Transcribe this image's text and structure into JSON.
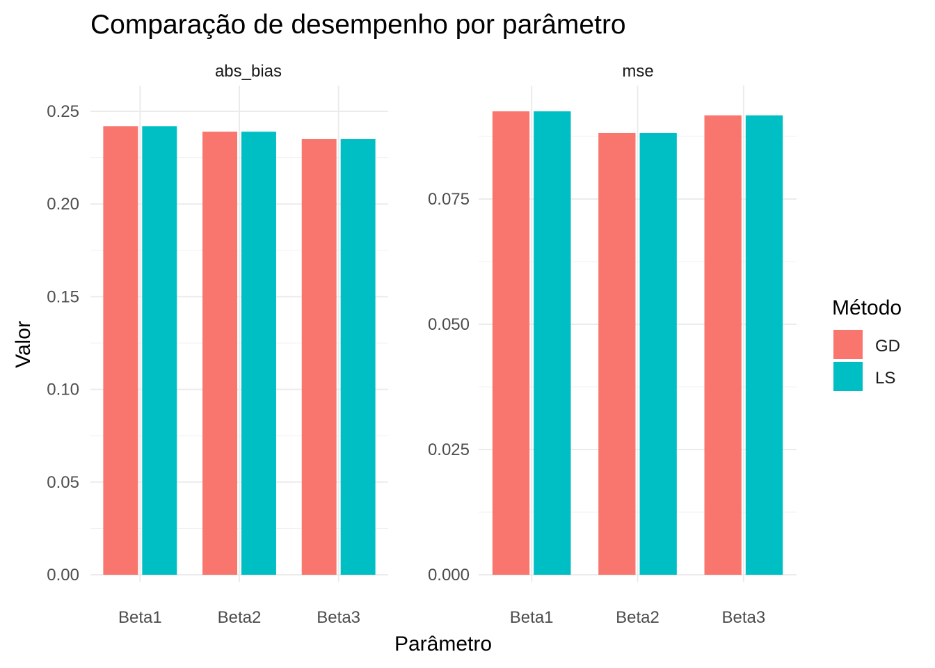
{
  "chart_data": {
    "type": "bar",
    "title": "Comparação de desempenho por parâmetro",
    "xlabel": "Parâmetro",
    "ylabel": "Valor",
    "categories": [
      "Beta1",
      "Beta2",
      "Beta3"
    ],
    "legend": {
      "title": "Método",
      "position": "right",
      "entries": [
        {
          "name": "GD",
          "color": "#F8766D"
        },
        {
          "name": "LS",
          "color": "#00BFC4"
        }
      ]
    },
    "grid": true,
    "panels": [
      {
        "name": "abs_bias",
        "ylim": [
          0,
          0.25
        ],
        "ticks": [
          0.0,
          0.05,
          0.1,
          0.15,
          0.2,
          0.25
        ],
        "tick_labels": [
          "0.00",
          "0.05",
          "0.10",
          "0.15",
          "0.20",
          "0.25"
        ],
        "series": [
          {
            "name": "GD",
            "values": [
              0.242,
              0.239,
              0.235
            ]
          },
          {
            "name": "LS",
            "values": [
              0.242,
              0.239,
              0.235
            ]
          }
        ]
      },
      {
        "name": "mse",
        "ylim": [
          0,
          0.0925
        ],
        "ticks": [
          0.0,
          0.025,
          0.05,
          0.075
        ],
        "tick_labels": [
          "0.000",
          "0.025",
          "0.050",
          "0.075"
        ],
        "series": [
          {
            "name": "GD",
            "values": [
              0.0925,
              0.0882,
              0.0917
            ]
          },
          {
            "name": "LS",
            "values": [
              0.0925,
              0.0882,
              0.0917
            ]
          }
        ]
      }
    ]
  }
}
